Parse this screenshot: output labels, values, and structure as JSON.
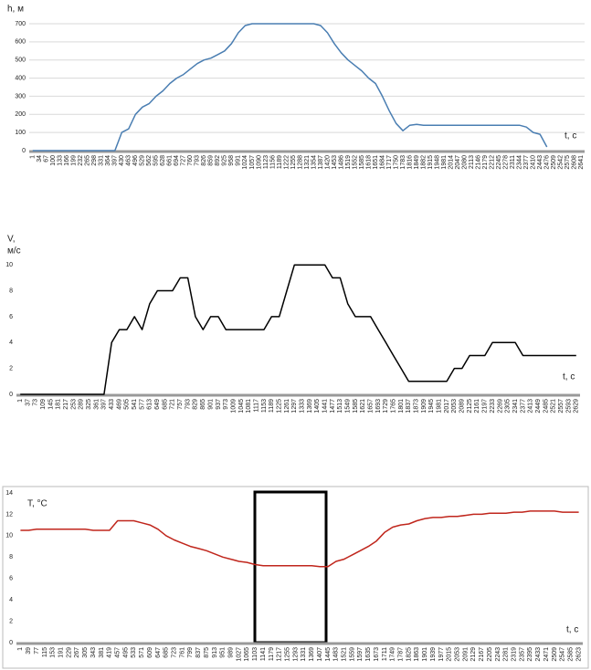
{
  "chart_data": [
    {
      "type": "line",
      "ylabel": "h, м",
      "xlabel": "t, c",
      "color": "#4a7eb2",
      "grid": true,
      "ylim": [
        0,
        700
      ],
      "yticks": [
        0,
        100,
        200,
        300,
        400,
        500,
        600,
        700
      ],
      "categories": [
        "1",
        "34",
        "67",
        "100",
        "133",
        "166",
        "199",
        "232",
        "265",
        "298",
        "331",
        "364",
        "397",
        "430",
        "463",
        "496",
        "529",
        "562",
        "595",
        "628",
        "661",
        "694",
        "727",
        "760",
        "793",
        "826",
        "859",
        "892",
        "925",
        "958",
        "991",
        "1024",
        "1057",
        "1090",
        "1123",
        "1156",
        "1189",
        "1222",
        "1255",
        "1288",
        "1321",
        "1354",
        "1387",
        "1420",
        "1453",
        "1486",
        "1519",
        "1552",
        "1585",
        "1618",
        "1651",
        "1684",
        "1717",
        "1750",
        "1783",
        "1816",
        "1849",
        "1882",
        "1915",
        "1948",
        "1981",
        "2014",
        "2047",
        "2080",
        "2113",
        "2146",
        "2179",
        "2212",
        "2245",
        "2278",
        "2311",
        "2344",
        "2377",
        "2410",
        "2443",
        "2476",
        "2509",
        "2542",
        "2575",
        "2608",
        "2641"
      ],
      "values": [
        0,
        0,
        0,
        0,
        0,
        0,
        0,
        0,
        0,
        0,
        0,
        0,
        0,
        100,
        120,
        200,
        240,
        260,
        300,
        330,
        370,
        400,
        420,
        450,
        480,
        500,
        510,
        530,
        550,
        590,
        650,
        690,
        700,
        700,
        700,
        700,
        700,
        700,
        700,
        700,
        700,
        700,
        690,
        650,
        590,
        540,
        500,
        470,
        440,
        400,
        370,
        300,
        220,
        150,
        110,
        140,
        145,
        140,
        140,
        140,
        140,
        140,
        140,
        140,
        140,
        140,
        140,
        140,
        140,
        140,
        140,
        140,
        130,
        100,
        90,
        20,
        null,
        null,
        null,
        null,
        null
      ]
    },
    {
      "type": "line",
      "ylabel": [
        "V,",
        "м/с"
      ],
      "xlabel": "t, c",
      "color": "#000000",
      "grid": false,
      "ylim": [
        0,
        11
      ],
      "yticks": [
        0,
        2,
        4,
        6,
        8,
        10
      ],
      "categories": [
        "1",
        "37",
        "73",
        "109",
        "145",
        "181",
        "217",
        "253",
        "289",
        "325",
        "361",
        "397",
        "433",
        "469",
        "505",
        "541",
        "577",
        "613",
        "649",
        "685",
        "721",
        "757",
        "793",
        "829",
        "865",
        "901",
        "937",
        "973",
        "1009",
        "1045",
        "1081",
        "1117",
        "1153",
        "1189",
        "1225",
        "1261",
        "1297",
        "1333",
        "1369",
        "1405",
        "1441",
        "1477",
        "1513",
        "1549",
        "1585",
        "1621",
        "1657",
        "1693",
        "1729",
        "1765",
        "1801",
        "1837",
        "1873",
        "1909",
        "1945",
        "1981",
        "2017",
        "2053",
        "2089",
        "2125",
        "2161",
        "2197",
        "2233",
        "2269",
        "2305",
        "2341",
        "2377",
        "2413",
        "2449",
        "2485",
        "2521",
        "2557",
        "2593",
        "2629"
      ],
      "values": [
        0,
        0,
        0,
        0,
        0,
        0,
        0,
        0,
        0,
        0,
        0,
        0,
        4,
        5,
        5,
        6,
        5,
        7,
        8,
        8,
        8,
        9,
        9,
        6,
        5,
        6,
        6,
        5,
        5,
        5,
        5,
        5,
        5,
        6,
        6,
        8,
        10,
        10,
        10,
        10,
        10,
        9,
        9,
        7,
        6,
        6,
        6,
        5,
        4,
        3,
        2,
        1,
        1,
        1,
        1,
        1,
        1,
        2,
        2,
        3,
        3,
        3,
        4,
        4,
        4,
        4,
        3,
        3,
        3,
        3,
        3,
        3,
        3,
        3
      ]
    },
    {
      "type": "line",
      "ylabel": "T, °C",
      "xlabel": "t, c",
      "color": "#c0261c",
      "grid": false,
      "ylim": [
        0,
        14
      ],
      "yticks": [
        0,
        2,
        4,
        6,
        8,
        10,
        12,
        14
      ],
      "categories": [
        "1",
        "39",
        "77",
        "115",
        "153",
        "191",
        "229",
        "267",
        "305",
        "343",
        "381",
        "419",
        "457",
        "495",
        "533",
        "571",
        "609",
        "647",
        "685",
        "723",
        "761",
        "799",
        "837",
        "875",
        "913",
        "951",
        "989",
        "1027",
        "1065",
        "1103",
        "1141",
        "1179",
        "1217",
        "1255",
        "1293",
        "1331",
        "1369",
        "1407",
        "1445",
        "1483",
        "1521",
        "1559",
        "1597",
        "1635",
        "1673",
        "1711",
        "1749",
        "1787",
        "1825",
        "1863",
        "1901",
        "1939",
        "1977",
        "2015",
        "2053",
        "2091",
        "2129",
        "2167",
        "2205",
        "2243",
        "2281",
        "2319",
        "2357",
        "2395",
        "2433",
        "2471",
        "2509",
        "2547",
        "2585",
        "2623"
      ],
      "values": [
        10.5,
        10.5,
        10.6,
        10.6,
        10.6,
        10.6,
        10.6,
        10.6,
        10.6,
        10.5,
        10.5,
        10.5,
        11.4,
        11.4,
        11.4,
        11.2,
        11,
        10.6,
        10,
        9.6,
        9.3,
        9,
        8.8,
        8.6,
        8.3,
        8,
        7.8,
        7.6,
        7.5,
        7.3,
        7.2,
        7.2,
        7.2,
        7.2,
        7.2,
        7.2,
        7.2,
        7.1,
        7.1,
        7.6,
        7.8,
        8.2,
        8.6,
        9,
        9.5,
        10.3,
        10.8,
        11,
        11.1,
        11.4,
        11.6,
        11.7,
        11.7,
        11.8,
        11.8,
        11.9,
        12,
        12,
        12.1,
        12.1,
        12.1,
        12.2,
        12.2,
        12.3,
        12.3,
        12.3,
        12.3,
        12.2,
        12.2,
        12.2
      ]
    }
  ]
}
